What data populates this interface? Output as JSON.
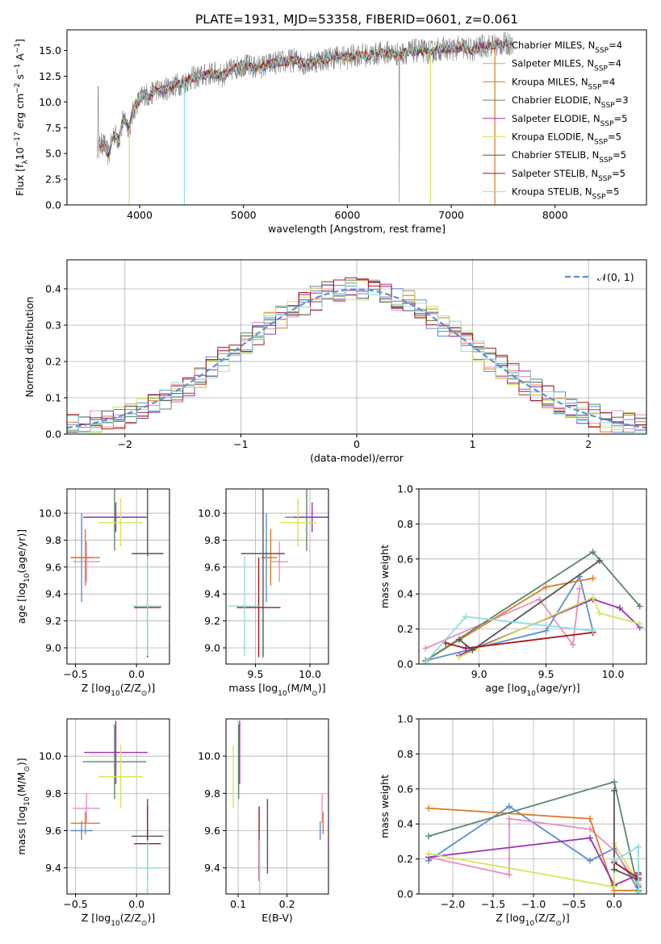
{
  "figure": {
    "title": "PLATE=1931, MJD=53358, FIBERID=0601, z=0.061"
  },
  "colors": {
    "chabrier_miles": "#5b8fd6",
    "salpeter_miles": "#e68fc0",
    "kroupa_miles": "#e07b26",
    "chabrier_elodie": "#5a8a66",
    "salpeter_elodie": "#9b30b8",
    "kroupa_elodie": "#d3e659",
    "chabrier_stelib": "#555555",
    "salpeter_stelib": "#a8161c",
    "kroupa_stelib": "#8bdede",
    "observed": "#808080",
    "normal_fit": "#5b8fd6"
  },
  "chart_data": [
    {
      "id": "spectrum",
      "type": "line",
      "title": "PLATE=1931, MJD=53358, FIBERID=0601, z=0.061",
      "xlabel": "wavelength [Angstrom, rest frame]",
      "ylabel": "Flux [f",
      "ylabel_sub": "λ",
      "ylabel_tail": "10",
      "ylabel_exp": "−17",
      "ylabel_rest": " erg cm",
      "ylabel_exp2": "−2",
      "ylabel_rest2": " s",
      "ylabel_exp3": "−1",
      "ylabel_rest3": " A",
      "ylabel_exp4": "−1",
      "ylabel_end": "]",
      "xlim": [
        3300,
        8880
      ],
      "ylim": [
        0,
        17
      ],
      "xticks": [
        4000,
        5000,
        6000,
        7000,
        8000
      ],
      "xticklabels": [
        "4000",
        "5000",
        "6000",
        "7000",
        "8000"
      ],
      "yticks": [
        0,
        2.5,
        5,
        7.5,
        10,
        12.5,
        15
      ],
      "yticklabels": [
        "0.0",
        "2.5",
        "5.0",
        "7.5",
        "10.0",
        "12.5",
        "15.0"
      ],
      "observed": {
        "x": [
          3590,
          3650,
          3700,
          3750,
          3800,
          3850,
          3900,
          3950,
          4000,
          4050,
          4100,
          4150,
          4200,
          4300,
          4400,
          4500,
          4600,
          4700,
          4800,
          4900,
          5000,
          5100,
          5200,
          5300,
          5400,
          5500,
          5600,
          5700,
          5800,
          5900,
          6000,
          6100,
          6200,
          6300,
          6400,
          6500,
          6600,
          6700,
          6800,
          6900,
          7000,
          7100,
          7200,
          7300,
          7400,
          7500,
          7600
        ],
        "y": [
          5.5,
          6.0,
          4.8,
          7.0,
          6.3,
          8.5,
          7.5,
          9.5,
          10.2,
          10.8,
          10.5,
          11.3,
          11.0,
          11.5,
          11.8,
          12.3,
          12.5,
          12.8,
          12.6,
          13.2,
          13.6,
          13.3,
          13.5,
          13.8,
          13.9,
          14.1,
          13.7,
          14.0,
          14.2,
          14.4,
          14.3,
          14.6,
          14.5,
          14.7,
          14.8,
          14.6,
          14.9,
          15.0,
          14.8,
          15.2,
          15.1,
          15.3,
          15.0,
          15.4,
          15.5,
          15.6,
          15.7
        ]
      },
      "series": [
        {
          "name": "Chabrier MILES, N",
          "sub": "SSP",
          "tail": "=4",
          "color_key": "chabrier_miles"
        },
        {
          "name": "Salpeter MILES, N",
          "sub": "SSP",
          "tail": "=4",
          "color_key": "salpeter_miles"
        },
        {
          "name": "Kroupa MILES, N",
          "sub": "SSP",
          "tail": "=4",
          "color_key": "kroupa_miles"
        },
        {
          "name": "Chabrier ELODIE, N",
          "sub": "SSP",
          "tail": "=3",
          "color_key": "chabrier_elodie"
        },
        {
          "name": "Salpeter ELODIE, N",
          "sub": "SSP",
          "tail": "=5",
          "color_key": "salpeter_elodie"
        },
        {
          "name": "Kroupa ELODIE, N",
          "sub": "SSP",
          "tail": "=5",
          "color_key": "kroupa_elodie"
        },
        {
          "name": "Chabrier STELIB, N",
          "sub": "SSP",
          "tail": "=5",
          "color_key": "chabrier_stelib"
        },
        {
          "name": "Salpeter STELIB, N",
          "sub": "SSP",
          "tail": "=5",
          "color_key": "salpeter_stelib"
        },
        {
          "name": "Kroupa STELIB, N",
          "sub": "SSP",
          "tail": "=5",
          "color_key": "kroupa_stelib"
        }
      ],
      "legend": "right"
    },
    {
      "id": "residuals",
      "type": "histogram",
      "xlabel": "(data-model)/error",
      "ylabel": "Normed distribution",
      "xlim": [
        -2.5,
        2.5
      ],
      "ylim": [
        0,
        0.48
      ],
      "xticks": [
        -2,
        -1,
        0,
        1,
        2
      ],
      "xticklabels": [
        "−2",
        "−1",
        "0",
        "1",
        "2"
      ],
      "yticks": [
        0,
        0.1,
        0.2,
        0.3,
        0.4
      ],
      "yticklabels": [
        "0.0",
        "0.1",
        "0.2",
        "0.3",
        "0.4"
      ],
      "grid": true,
      "legend": "top-right",
      "legend_label": "𝒩(0, 1)",
      "bin_width": 0.1
    },
    {
      "id": "age_vs_Z",
      "type": "errorbar",
      "xlabel": "Z [log",
      "xlabel_sub": "10",
      "xlabel_tail": "(Z/Z",
      "xlabel_sub2": "⊙",
      "xlabel_end": ")]",
      "ylabel": "age  [log",
      "ylabel_sub": "10",
      "ylabel_tail": "(age/yr)]",
      "xlim": [
        -0.57,
        0.27
      ],
      "ylim": [
        8.88,
        10.18
      ],
      "xticks": [
        -0.5,
        0.0
      ],
      "xticklabels": [
        "−0.5",
        "0.0"
      ],
      "yticks": [
        9.0,
        9.2,
        9.4,
        9.6,
        9.8,
        10.0
      ],
      "yticklabels": [
        "9.0",
        "9.2",
        "9.4",
        "9.6",
        "9.8",
        "10.0"
      ],
      "grid": true,
      "points": [
        {
          "c": "chabrier_miles",
          "x": -0.45,
          "xerr": 0.09,
          "y": 9.67,
          "yerr": 0.33
        },
        {
          "c": "salpeter_miles",
          "x": -0.41,
          "xerr": 0.11,
          "y": 9.64,
          "yerr": 0.15
        },
        {
          "c": "kroupa_miles",
          "x": -0.42,
          "xerr": 0.12,
          "y": 9.67,
          "yerr": 0.21
        },
        {
          "c": "chabrier_elodie",
          "x": -0.18,
          "xerr": 0.26,
          "y": 9.97,
          "yerr": 0.25
        },
        {
          "c": "salpeter_elodie",
          "x": -0.17,
          "xerr": 0.26,
          "y": 9.97,
          "yerr": 0.11
        },
        {
          "c": "kroupa_elodie",
          "x": -0.13,
          "xerr": 0.18,
          "y": 9.93,
          "yerr": 0.18
        },
        {
          "c": "chabrier_stelib",
          "x": 0.09,
          "xerr": 0.13,
          "y": 9.7,
          "yerr": 0.77
        },
        {
          "c": "salpeter_stelib",
          "x": 0.09,
          "xerr": 0.11,
          "y": 9.3,
          "yerr": 0.37
        },
        {
          "c": "kroupa_stelib",
          "x": 0.09,
          "xerr": 0.12,
          "y": 9.31,
          "yerr": 0.37
        }
      ]
    },
    {
      "id": "age_vs_mass",
      "type": "errorbar",
      "xlabel": "mass [log",
      "xlabel_sub": "10",
      "xlabel_tail": "(M/M",
      "xlabel_sub2": "⊙",
      "xlabel_end": ")]",
      "xlim": [
        9.23,
        10.17
      ],
      "ylim": [
        8.88,
        10.18
      ],
      "xticks": [
        9.5,
        10.0
      ],
      "xticklabels": [
        "9.5",
        "10.0"
      ],
      "yticks": [
        9.0,
        9.2,
        9.4,
        9.6,
        9.8,
        10.0
      ],
      "yticklabels": [
        "9.0",
        "9.2",
        "9.4",
        "9.6",
        "9.8",
        "10.0"
      ],
      "grid": true,
      "points": [
        {
          "c": "chabrier_miles",
          "x": 9.6,
          "xerr": 0.05,
          "y": 9.67,
          "yerr": 0.33
        },
        {
          "c": "salpeter_miles",
          "x": 9.72,
          "xerr": 0.08,
          "y": 9.64,
          "yerr": 0.15
        },
        {
          "c": "kroupa_miles",
          "x": 9.64,
          "xerr": 0.06,
          "y": 9.67,
          "yerr": 0.21
        },
        {
          "c": "chabrier_elodie",
          "x": 9.97,
          "xerr": 0.2,
          "y": 9.97,
          "yerr": 0.25
        },
        {
          "c": "salpeter_elodie",
          "x": 10.02,
          "xerr": 0.17,
          "y": 9.97,
          "yerr": 0.11
        },
        {
          "c": "kroupa_elodie",
          "x": 9.89,
          "xerr": 0.17,
          "y": 9.93,
          "yerr": 0.18
        },
        {
          "c": "chabrier_stelib",
          "x": 9.57,
          "xerr": 0.2,
          "y": 9.7,
          "yerr": 0.77
        },
        {
          "c": "salpeter_stelib",
          "x": 9.53,
          "xerr": 0.2,
          "y": 9.3,
          "yerr": 0.37
        },
        {
          "c": "kroupa_stelib",
          "x": 9.4,
          "xerr": 0.15,
          "y": 9.31,
          "yerr": 0.37
        }
      ]
    },
    {
      "id": "weight_vs_age",
      "type": "line",
      "xlabel": "age  [log",
      "xlabel_sub": "10",
      "xlabel_tail": "(age/yr)]",
      "ylabel": "mass weight",
      "xlim": [
        8.55,
        10.25
      ],
      "ylim": [
        0,
        1
      ],
      "xticks": [
        9.0,
        9.5,
        10.0
      ],
      "xticklabels": [
        "9.0",
        "9.5",
        "10.0"
      ],
      "yticks": [
        0,
        0.2,
        0.4,
        0.6,
        0.8,
        1.0
      ],
      "yticklabels": [
        "0.0",
        "0.2",
        "0.4",
        "0.6",
        "0.8",
        "1.0"
      ],
      "grid": true,
      "series": [
        {
          "c": "chabrier_miles",
          "x": [
            8.6,
            9.5,
            9.75,
            9.85
          ],
          "y": [
            0.02,
            0.19,
            0.5,
            0.19
          ]
        },
        {
          "c": "salpeter_miles",
          "x": [
            8.6,
            9.45,
            9.7,
            9.75
          ],
          "y": [
            0.09,
            0.37,
            0.11,
            0.43
          ]
        },
        {
          "c": "kroupa_miles",
          "x": [
            8.6,
            9.5,
            9.85
          ],
          "y": [
            0.02,
            0.44,
            0.49
          ]
        },
        {
          "c": "chabrier_elodie",
          "x": [
            8.6,
            9.85,
            10.2
          ],
          "y": [
            0.02,
            0.64,
            0.33
          ]
        },
        {
          "c": "salpeter_elodie",
          "x": [
            8.85,
            9.85,
            10.05,
            10.2
          ],
          "y": [
            0.05,
            0.37,
            0.32,
            0.21
          ]
        },
        {
          "c": "kroupa_elodie",
          "x": [
            8.85,
            9.85,
            9.9,
            10.2
          ],
          "y": [
            0.04,
            0.38,
            0.29,
            0.23
          ]
        },
        {
          "c": "chabrier_stelib",
          "x": [
            8.85,
            8.95,
            9.9
          ],
          "y": [
            0.14,
            0.08,
            0.59
          ]
        },
        {
          "c": "salpeter_stelib",
          "x": [
            8.75,
            8.9,
            9.85
          ],
          "y": [
            0.12,
            0.09,
            0.18
          ]
        },
        {
          "c": "kroupa_stelib",
          "x": [
            8.6,
            8.9,
            9.85
          ],
          "y": [
            0.01,
            0.27,
            0.19
          ]
        }
      ]
    },
    {
      "id": "mass_vs_Z",
      "type": "errorbar",
      "xlabel": "Z [log",
      "xlabel_sub": "10",
      "xlabel_tail": "(Z/Z",
      "xlabel_sub2": "⊙",
      "xlabel_end": ")]",
      "ylabel": "mass [log",
      "ylabel_sub": "10",
      "ylabel_tail": "(M/M",
      "ylabel_sub2": "⊙",
      "ylabel_end": ")]",
      "xlim": [
        -0.57,
        0.27
      ],
      "ylim": [
        9.26,
        10.2
      ],
      "xticks": [
        -0.5,
        0.0
      ],
      "xticklabels": [
        "−0.5",
        "0.0"
      ],
      "yticks": [
        9.4,
        9.6,
        9.8,
        10.0
      ],
      "yticklabels": [
        "9.4",
        "9.6",
        "9.8",
        "10.0"
      ],
      "grid": true,
      "points": [
        {
          "c": "chabrier_miles",
          "x": -0.45,
          "xerr": 0.09,
          "y": 9.6,
          "yerr": 0.05
        },
        {
          "c": "salpeter_miles",
          "x": -0.41,
          "xerr": 0.11,
          "y": 9.72,
          "yerr": 0.08
        },
        {
          "c": "kroupa_miles",
          "x": -0.42,
          "xerr": 0.12,
          "y": 9.64,
          "yerr": 0.06
        },
        {
          "c": "chabrier_elodie",
          "x": -0.18,
          "xerr": 0.26,
          "y": 9.97,
          "yerr": 0.2
        },
        {
          "c": "salpeter_elodie",
          "x": -0.17,
          "xerr": 0.26,
          "y": 10.02,
          "yerr": 0.17
        },
        {
          "c": "kroupa_elodie",
          "x": -0.13,
          "xerr": 0.18,
          "y": 9.89,
          "yerr": 0.17
        },
        {
          "c": "chabrier_stelib",
          "x": 0.09,
          "xerr": 0.13,
          "y": 9.57,
          "yerr": 0.2
        },
        {
          "c": "salpeter_stelib",
          "x": 0.09,
          "xerr": 0.11,
          "y": 9.53,
          "yerr": 0.2
        },
        {
          "c": "kroupa_stelib",
          "x": 0.09,
          "xerr": 0.12,
          "y": 9.4,
          "yerr": 0.15
        }
      ]
    },
    {
      "id": "mass_vs_ebv",
      "type": "errorbar",
      "xlabel": "E(B-V)",
      "xlim": [
        0.075,
        0.285
      ],
      "ylim": [
        9.26,
        10.2
      ],
      "xticks": [
        0.1,
        0.2
      ],
      "xticklabels": [
        "0.1",
        "0.2"
      ],
      "yticks": [
        9.4,
        9.6,
        9.8,
        10.0
      ],
      "yticklabels": [
        "9.4",
        "9.6",
        "9.8",
        "10.0"
      ],
      "grid": true,
      "points": [
        {
          "c": "chabrier_miles",
          "x": 0.268,
          "xerr": 0.0,
          "y": 9.6,
          "yerr": 0.05
        },
        {
          "c": "salpeter_miles",
          "x": 0.272,
          "xerr": 0.0,
          "y": 9.72,
          "yerr": 0.08
        },
        {
          "c": "kroupa_miles",
          "x": 0.274,
          "xerr": 0.0,
          "y": 9.64,
          "yerr": 0.06
        },
        {
          "c": "chabrier_elodie",
          "x": 0.101,
          "xerr": 0.0,
          "y": 9.97,
          "yerr": 0.2
        },
        {
          "c": "salpeter_elodie",
          "x": 0.103,
          "xerr": 0.0,
          "y": 10.02,
          "yerr": 0.17
        },
        {
          "c": "kroupa_elodie",
          "x": 0.09,
          "xerr": 0.0,
          "y": 9.89,
          "yerr": 0.17
        },
        {
          "c": "chabrier_stelib",
          "x": 0.16,
          "xerr": 0.0,
          "y": 9.57,
          "yerr": 0.2
        },
        {
          "c": "salpeter_stelib",
          "x": 0.143,
          "xerr": 0.0,
          "y": 9.53,
          "yerr": 0.2
        },
        {
          "c": "kroupa_stelib",
          "x": 0.144,
          "xerr": 0.0,
          "y": 9.4,
          "yerr": 0.15
        }
      ]
    },
    {
      "id": "weight_vs_Z",
      "type": "line",
      "xlabel": "Z [log",
      "xlabel_sub": "10",
      "xlabel_tail": "(Z/Z",
      "xlabel_sub2": "⊙",
      "xlabel_end": ")]",
      "ylabel": "mass weight",
      "xlim": [
        -2.42,
        0.4
      ],
      "ylim": [
        0,
        1
      ],
      "xticks": [
        -2.0,
        -1.5,
        -1.0,
        -0.5,
        0.0
      ],
      "xticklabels": [
        "−2.0",
        "−1.5",
        "−1.0",
        "−0.5",
        "0.0"
      ],
      "yticks": [
        0,
        0.2,
        0.4,
        0.6,
        0.8,
        1.0
      ],
      "yticklabels": [
        "0.0",
        "0.2",
        "0.4",
        "0.6",
        "0.8",
        "1.0"
      ],
      "grid": true,
      "series": [
        {
          "c": "chabrier_miles",
          "x": [
            -2.3,
            -1.3,
            -0.3,
            0.0,
            0.3
          ],
          "y": [
            0.19,
            0.5,
            0.19,
            0.26,
            0.02
          ]
        },
        {
          "c": "salpeter_miles",
          "x": [
            -2.3,
            -1.3,
            -1.3,
            -0.3,
            0.0,
            0.3
          ],
          "y": [
            0.21,
            0.11,
            0.43,
            0.37,
            0.25,
            0.05
          ]
        },
        {
          "c": "kroupa_miles",
          "x": [
            -2.3,
            -0.3,
            0.0,
            0.3
          ],
          "y": [
            0.49,
            0.43,
            0.02,
            0.02
          ]
        },
        {
          "c": "chabrier_elodie",
          "x": [
            -2.3,
            0.0,
            0.3
          ],
          "y": [
            0.33,
            0.64,
            0.02
          ]
        },
        {
          "c": "salpeter_elodie",
          "x": [
            -2.3,
            -0.3,
            0.0,
            0.3,
            0.3
          ],
          "y": [
            0.21,
            0.32,
            0.05,
            0.11,
            0.04
          ]
        },
        {
          "c": "kroupa_elodie",
          "x": [
            -2.3,
            0.0,
            0.0,
            0.3
          ],
          "y": [
            0.23,
            0.04,
            0.29,
            0.06
          ]
        },
        {
          "c": "chabrier_stelib",
          "x": [
            0.0,
            0.0,
            0.3,
            0.3
          ],
          "y": [
            0.59,
            0.14,
            0.08,
            0.01
          ]
        },
        {
          "c": "salpeter_stelib",
          "x": [
            0.0,
            0.3,
            0.3
          ],
          "y": [
            0.18,
            0.09,
            0.12
          ]
        },
        {
          "c": "kroupa_stelib",
          "x": [
            0.0,
            0.3,
            0.3
          ],
          "y": [
            0.19,
            0.27,
            0.01
          ]
        }
      ]
    }
  ]
}
